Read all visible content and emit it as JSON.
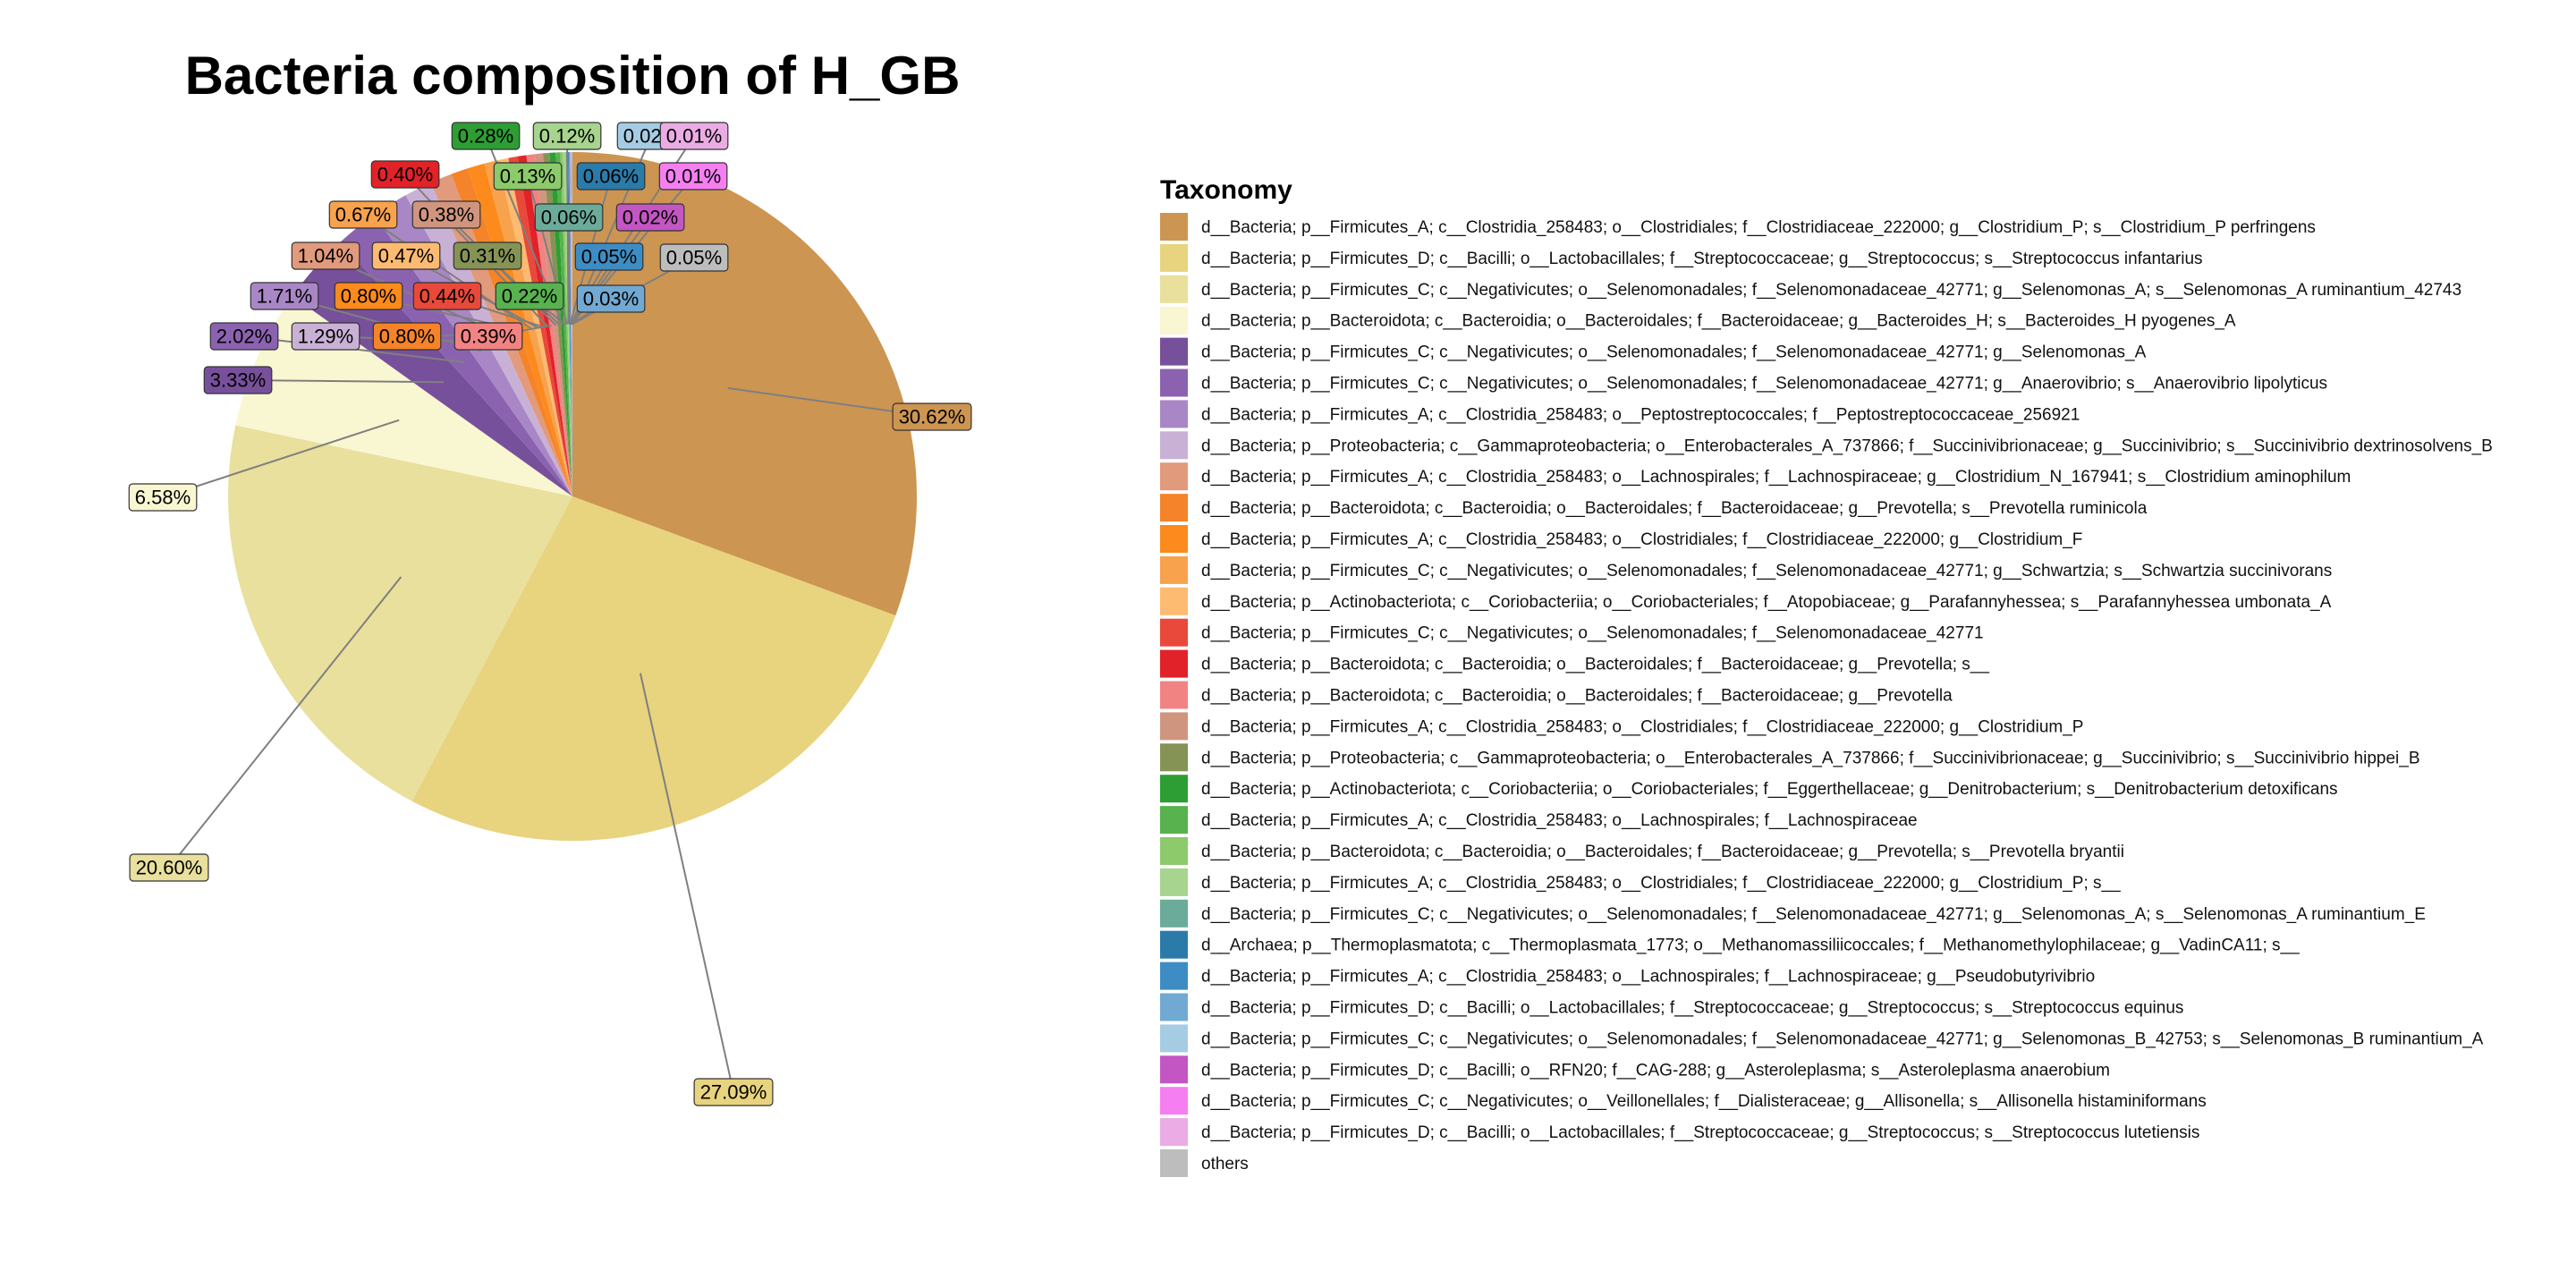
{
  "chart_data": {
    "type": "pie",
    "title": "Bacteria composition of H_GB",
    "legend_title": "Taxonomy",
    "legend_position": "right",
    "slices": [
      {
        "label": "d__Bacteria; p__Firmicutes_A; c__Clostridia_258483; o__Clostridiales; f__Clostridiaceae_222000; g__Clostridium_P; s__Clostridium_P perfringens",
        "value": 30.62,
        "value_label": "30.62%",
        "color": "#CD9552"
      },
      {
        "label": "d__Bacteria; p__Firmicutes_D; c__Bacilli; o__Lactobacillales; f__Streptococcaceae; g__Streptococcus; s__Streptococcus infantarius",
        "value": 27.09,
        "value_label": "27.09%",
        "color": "#E8D37E"
      },
      {
        "label": "d__Bacteria; p__Firmicutes_C; c__Negativicutes; o__Selenomonadales; f__Selenomonadaceae_42771; g__Selenomonas_A; s__Selenomonas_A ruminantium_42743",
        "value": 20.6,
        "value_label": "20.60%",
        "color": "#E8E09C"
      },
      {
        "label": "d__Bacteria; p__Bacteroidota; c__Bacteroidia; o__Bacteroidales; f__Bacteroidaceae; g__Bacteroides_H; s__Bacteroides_H pyogenes_A",
        "value": 6.58,
        "value_label": "6.58%",
        "color": "#F9F6D2"
      },
      {
        "label": "d__Bacteria; p__Firmicutes_C; c__Negativicutes; o__Selenomonadales; f__Selenomonadaceae_42771; g__Selenomonas_A",
        "value": 3.33,
        "value_label": "3.33%",
        "color": "#77509B"
      },
      {
        "label": "d__Bacteria; p__Firmicutes_C; c__Negativicutes; o__Selenomonadales; f__Selenomonadaceae_42771; g__Anaerovibrio; s__Anaerovibrio lipolyticus",
        "value": 2.02,
        "value_label": "2.02%",
        "color": "#8B62B0"
      },
      {
        "label": "d__Bacteria; p__Firmicutes_A; c__Clostridia_258483; o__Peptostreptococcales; f__Peptostreptococcaceae_256921",
        "value": 1.71,
        "value_label": "1.71%",
        "color": "#A987C6"
      },
      {
        "label": "d__Bacteria; p__Proteobacteria; c__Gammaproteobacteria; o__Enterobacterales_A_737866; f__Succinivibrionaceae; g__Succinivibrio; s__Succinivibrio dextrinosolvens_B",
        "value": 1.29,
        "value_label": "1.29%",
        "color": "#C9B1D6"
      },
      {
        "label": "d__Bacteria; p__Firmicutes_A; c__Clostridia_258483; o__Lachnospirales; f__Lachnospiraceae; g__Clostridium_N_167941; s__Clostridium aminophilum",
        "value": 1.04,
        "value_label": "1.04%",
        "color": "#E19A7C"
      },
      {
        "label": "d__Bacteria; p__Bacteroidota; c__Bacteroidia; o__Bacteroidales; f__Bacteroidaceae; g__Prevotella; s__Prevotella ruminicola",
        "value": 0.8,
        "value_label": "0.80%",
        "color": "#F5832A"
      },
      {
        "label": "d__Bacteria; p__Firmicutes_A; c__Clostridia_258483; o__Clostridiales; f__Clostridiaceae_222000; g__Clostridium_F",
        "value": 0.8,
        "value_label": "0.80%",
        "color": "#FC8A1C"
      },
      {
        "label": "d__Bacteria; p__Firmicutes_C; c__Negativicutes; o__Selenomonadales; f__Selenomonadaceae_42771; g__Schwartzia; s__Schwartzia succinivorans",
        "value": 0.67,
        "value_label": "0.67%",
        "color": "#F8A24E"
      },
      {
        "label": "d__Bacteria; p__Actinobacteriota; c__Coriobacteriia; o__Coriobacteriales; f__Atopobiaceae; g__Parafannyhessea; s__Parafannyhessea umbonata_A",
        "value": 0.47,
        "value_label": "0.47%",
        "color": "#FDBB72"
      },
      {
        "label": "d__Bacteria; p__Firmicutes_C; c__Negativicutes; o__Selenomonadales; f__Selenomonadaceae_42771",
        "value": 0.44,
        "value_label": "0.44%",
        "color": "#E8493A"
      },
      {
        "label": "d__Bacteria; p__Bacteroidota; c__Bacteroidia; o__Bacteroidales; f__Bacteroidaceae; g__Prevotella; s__",
        "value": 0.4,
        "value_label": "0.40%",
        "color": "#E12228"
      },
      {
        "label": "d__Bacteria; p__Bacteroidota; c__Bacteroidia; o__Bacteroidales; f__Bacteroidaceae; g__Prevotella",
        "value": 0.39,
        "value_label": "0.39%",
        "color": "#F28383"
      },
      {
        "label": "d__Bacteria; p__Firmicutes_A; c__Clostridia_258483; o__Clostridiales; f__Clostridiaceae_222000; g__Clostridium_P",
        "value": 0.38,
        "value_label": "0.38%",
        "color": "#D0957E"
      },
      {
        "label": "d__Bacteria; p__Proteobacteria; c__Gammaproteobacteria; o__Enterobacterales_A_737866; f__Succinivibrionaceae; g__Succinivibrio; s__Succinivibrio hippei_B",
        "value": 0.31,
        "value_label": "0.31%",
        "color": "#859355"
      },
      {
        "label": "d__Bacteria; p__Actinobacteriota; c__Coriobacteriia; o__Coriobacteriales; f__Eggerthellaceae; g__Denitrobacterium; s__Denitrobacterium detoxificans",
        "value": 0.28,
        "value_label": "0.28%",
        "color": "#2D9E33"
      },
      {
        "label": "d__Bacteria; p__Firmicutes_A; c__Clostridia_258483; o__Lachnospirales; f__Lachnospiraceae",
        "value": 0.22,
        "value_label": "0.22%",
        "color": "#58B24E"
      },
      {
        "label": "d__Bacteria; p__Bacteroidota; c__Bacteroidia; o__Bacteroidales; f__Bacteroidaceae; g__Prevotella; s__Prevotella bryantii",
        "value": 0.13,
        "value_label": "0.13%",
        "color": "#8DCA6C"
      },
      {
        "label": "d__Bacteria; p__Firmicutes_A; c__Clostridia_258483; o__Clostridiales; f__Clostridiaceae_222000; g__Clostridium_P; s__",
        "value": 0.12,
        "value_label": "0.12%",
        "color": "#A7D48E"
      },
      {
        "label": "d__Bacteria; p__Firmicutes_C; c__Negativicutes; o__Selenomonadales; f__Selenomonadaceae_42771; g__Selenomonas_A; s__Selenomonas_A ruminantium_E",
        "value": 0.06,
        "value_label": "0.06%",
        "color": "#6BAB9A"
      },
      {
        "label": "d__Archaea; p__Thermoplasmatota; c__Thermoplasmata_1773; o__Methanomassiliicoccales; f__Methanomethylophilaceae; g__VadinCA11; s__",
        "value": 0.06,
        "value_label": "0.06%",
        "color": "#2A7BA9"
      },
      {
        "label": "d__Bacteria; p__Firmicutes_A; c__Clostridia_258483; o__Lachnospirales; f__Lachnospiraceae; g__Pseudobutyrivibrio",
        "value": 0.05,
        "value_label": "0.05%",
        "color": "#3D8DC4"
      },
      {
        "label": "d__Bacteria; p__Firmicutes_D; c__Bacilli; o__Lactobacillales; f__Streptococcaceae; g__Streptococcus; s__Streptococcus equinus",
        "value": 0.03,
        "value_label": "0.03%",
        "color": "#72A9D3"
      },
      {
        "label": "d__Bacteria; p__Firmicutes_C; c__Negativicutes; o__Selenomonadales; f__Selenomonadaceae_42771; g__Selenomonas_B_42753; s__Selenomonas_B ruminantium_A",
        "value": 0.02,
        "value_label": "0.02%",
        "color": "#A6CCE3"
      },
      {
        "label": "d__Bacteria; p__Firmicutes_D; c__Bacilli; o__RFN20; f__CAG-288; g__Asteroleplasma; s__Asteroleplasma anaerobium",
        "value": 0.02,
        "value_label": "0.02%",
        "color": "#C356C2"
      },
      {
        "label": "d__Bacteria; p__Firmicutes_C; c__Negativicutes; o__Veillonellales; f__Dialisteraceae; g__Allisonella; s__Allisonella histaminiformans",
        "value": 0.01,
        "value_label": "0.01%",
        "color": "#F57FF0"
      },
      {
        "label": "d__Bacteria; p__Firmicutes_D; c__Bacilli; o__Lactobacillales; f__Streptococcaceae; g__Streptococcus; s__Streptococcus lutetiensis",
        "value": 0.01,
        "value_label": "0.01%",
        "color": "#EBACE5"
      },
      {
        "label": "others",
        "value": 0.05,
        "value_label": "0.05%",
        "color": "#BDBDBD"
      }
    ]
  }
}
